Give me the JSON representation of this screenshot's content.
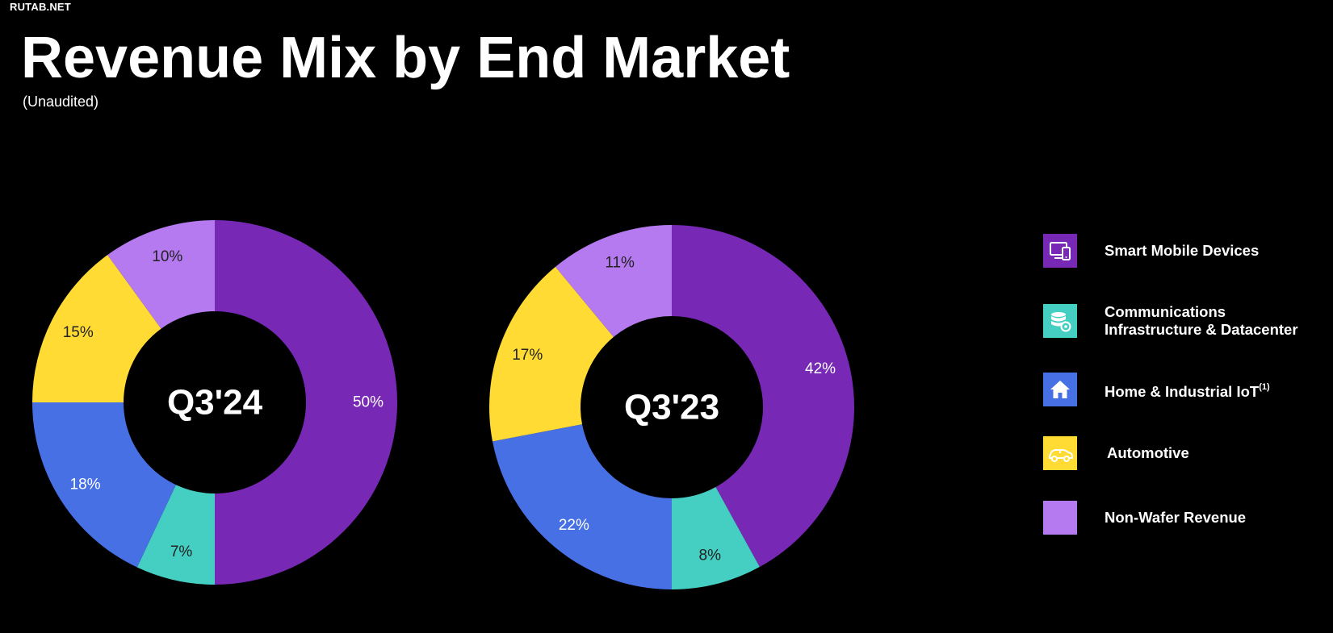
{
  "watermark": "RUTAB.NET",
  "header": {
    "title": "Revenue Mix by End Market",
    "subtitle": "(Unaudited)"
  },
  "colors": {
    "smart_mobile": "#7729b6",
    "comms": "#45cfc2",
    "home_iot": "#4770e5",
    "automotive": "#ffdb33",
    "non_wafer": "#b579f0",
    "background": "#000000"
  },
  "legend": [
    {
      "label": "Smart Mobile Devices",
      "icon": "devices-icon",
      "color": "#7729b6"
    },
    {
      "label_line1": "Communications",
      "label_line2": "Infrastructure & Datacenter",
      "icon": "database-gear-icon",
      "color": "#45cfc2"
    },
    {
      "label": "Home & Industrial IoT",
      "sup": "(1)",
      "icon": "home-icon",
      "color": "#4770e5"
    },
    {
      "label": "Automotive",
      "icon": "car-icon",
      "color": "#ffdb33"
    },
    {
      "label": "Non-Wafer Revenue",
      "icon": "",
      "color": "#b579f0"
    }
  ],
  "chart_data": [
    {
      "type": "pie",
      "style": "donut",
      "center_label": "Q3'24",
      "categories": [
        "Smart Mobile Devices",
        "Communications Infrastructure & Datacenter",
        "Home & Industrial IoT",
        "Automotive",
        "Non-Wafer Revenue"
      ],
      "values": [
        50,
        7,
        18,
        15,
        10
      ],
      "labels": [
        "50%",
        "7%",
        "18%",
        "15%",
        "10%"
      ],
      "colors": [
        "#7729b6",
        "#45cfc2",
        "#4770e5",
        "#ffdb33",
        "#b579f0"
      ],
      "label_colors": [
        "#ffffff",
        "#222222",
        "#ffffff",
        "#222222",
        "#222222"
      ]
    },
    {
      "type": "pie",
      "style": "donut",
      "center_label": "Q3'23",
      "categories": [
        "Smart Mobile Devices",
        "Communications Infrastructure & Datacenter",
        "Home & Industrial IoT",
        "Automotive",
        "Non-Wafer Revenue"
      ],
      "values": [
        42,
        8,
        22,
        17,
        11
      ],
      "labels": [
        "42%",
        "8%",
        "22%",
        "17%",
        "11%"
      ],
      "colors": [
        "#7729b6",
        "#45cfc2",
        "#4770e5",
        "#ffdb33",
        "#b579f0"
      ],
      "label_colors": [
        "#ffffff",
        "#222222",
        "#ffffff",
        "#222222",
        "#222222"
      ]
    }
  ]
}
